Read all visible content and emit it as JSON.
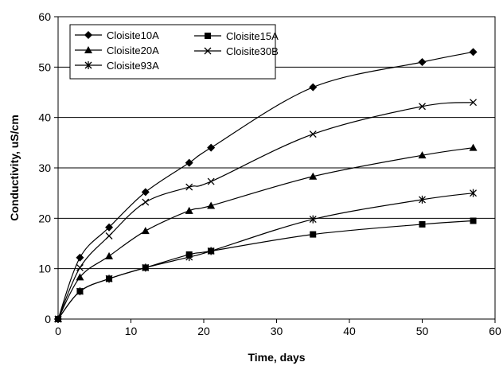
{
  "chart_data": {
    "type": "line",
    "title": "",
    "xlabel": "Time, days",
    "ylabel": "Conductivity, uS/cm",
    "xlim": [
      0,
      60
    ],
    "ylim": [
      0,
      60
    ],
    "xticks": [
      0,
      10,
      20,
      30,
      40,
      50,
      60
    ],
    "yticks": [
      0,
      10,
      20,
      30,
      40,
      50,
      60
    ],
    "grid": "horizontal",
    "legend_position": "top-left",
    "series": [
      {
        "name": "Cloisite10A",
        "marker": "diamond",
        "color": "#000000",
        "x": [
          0,
          3,
          7,
          12,
          18,
          21,
          35,
          50,
          57
        ],
        "y": [
          0,
          12.2,
          18.2,
          25.2,
          31,
          34,
          46,
          51,
          53
        ]
      },
      {
        "name": "Cloisite20A",
        "marker": "triangle",
        "color": "#000000",
        "x": [
          0,
          3,
          7,
          12,
          18,
          21,
          35,
          50,
          57
        ],
        "y": [
          0,
          8.3,
          12.5,
          17.5,
          21.5,
          22.5,
          28.3,
          32.5,
          34
        ]
      },
      {
        "name": "Cloisite93A",
        "marker": "star",
        "color": "#000000",
        "x": [
          0,
          3,
          7,
          12,
          18,
          21,
          35,
          50,
          57
        ],
        "y": [
          0,
          5.5,
          8,
          10.2,
          12.3,
          13.5,
          19.8,
          23.7,
          25
        ]
      },
      {
        "name": "Cloisite15A",
        "marker": "square",
        "color": "#000000",
        "x": [
          0,
          3,
          7,
          12,
          18,
          21,
          35,
          50,
          57
        ],
        "y": [
          0,
          5.5,
          8,
          10.2,
          12.8,
          13.5,
          16.8,
          18.8,
          19.5
        ]
      },
      {
        "name": "Cloisite30B",
        "marker": "x",
        "color": "#000000",
        "x": [
          0,
          3,
          7,
          12,
          18,
          21,
          35,
          50,
          57
        ],
        "y": [
          0,
          10.2,
          16.5,
          23.2,
          26.2,
          27.3,
          36.7,
          42.2,
          43
        ]
      }
    ]
  }
}
